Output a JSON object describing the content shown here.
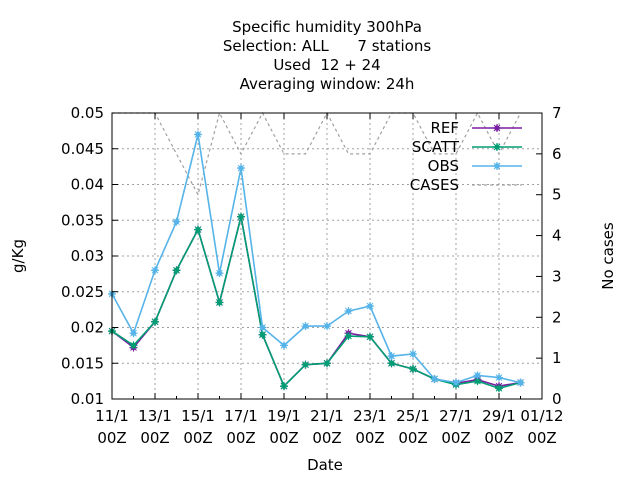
{
  "chart_data": {
    "type": "line",
    "title_lines": [
      "Specific humidity 300hPa",
      "Selection: ALL      7 stations",
      "Used  12 + 24",
      "Averaging window: 24h"
    ],
    "xlabel": "Date",
    "ylabel": "g/Kg",
    "y2label": "No cases",
    "ylim": [
      0.01,
      0.05
    ],
    "y2lim": [
      0,
      7
    ],
    "yticks": [
      "0.01",
      "0.015",
      "0.02",
      "0.025",
      "0.03",
      "0.035",
      "0.04",
      "0.045",
      "0.05"
    ],
    "y2ticks": [
      "0",
      "1",
      "2",
      "3",
      "4",
      "5",
      "6",
      "7"
    ],
    "xticks": [
      {
        "label": "11/1",
        "sub": "00Z"
      },
      {
        "label": "13/1",
        "sub": "00Z"
      },
      {
        "label": "15/1",
        "sub": "00Z"
      },
      {
        "label": "17/1",
        "sub": "00Z"
      },
      {
        "label": "19/1",
        "sub": "00Z"
      },
      {
        "label": "21/1",
        "sub": "00Z"
      },
      {
        "label": "23/1",
        "sub": "00Z"
      },
      {
        "label": "25/1",
        "sub": "00Z"
      },
      {
        "label": "27/1",
        "sub": "00Z"
      },
      {
        "label": "29/1",
        "sub": "00Z"
      },
      {
        "label": "01/12",
        "sub": "00Z"
      }
    ],
    "x_days": [
      "11/1",
      "12/1",
      "13/1",
      "14/1",
      "15/1",
      "16/1",
      "17/1",
      "18/1",
      "19/1",
      "20/1",
      "21/1",
      "22/1",
      "23/1",
      "24/1",
      "25/1",
      "26/1",
      "27/1",
      "28/1",
      "29/1",
      "30/1",
      "01/12"
    ],
    "series": [
      {
        "name": "REF",
        "color": "#7b1fa2",
        "axis": "y",
        "marker": true,
        "x": [
          0,
          1,
          2,
          3,
          4,
          5,
          6,
          7,
          8,
          9,
          10,
          11,
          12,
          13,
          14,
          15,
          16,
          17,
          18,
          19,
          20
        ],
        "values": [
          0.0195,
          0.0172,
          0.0208,
          0.028,
          0.0337,
          0.0235,
          0.0355,
          0.019,
          0.0118,
          0.0148,
          0.015,
          0.0192,
          0.0187,
          0.015,
          0.0142,
          0.0128,
          0.0122,
          0.0127,
          0.0118,
          0.0123,
          null
        ]
      },
      {
        "name": "SCATT",
        "color": "#009e73",
        "axis": "y",
        "marker": true,
        "x": [
          0,
          1,
          2,
          3,
          4,
          5,
          6,
          7,
          8,
          9,
          10,
          11,
          12,
          13,
          14,
          15,
          16,
          17,
          18,
          19,
          20
        ],
        "values": [
          0.0195,
          0.0175,
          0.0208,
          0.028,
          0.0337,
          0.0235,
          0.0355,
          0.019,
          0.0118,
          0.0148,
          0.015,
          0.0188,
          0.0187,
          0.015,
          0.0142,
          0.0128,
          0.012,
          0.0125,
          0.0115,
          0.0123,
          null
        ]
      },
      {
        "name": "OBS",
        "color": "#56b4e9",
        "axis": "y",
        "marker": true,
        "x": [
          0,
          1,
          2,
          3,
          4,
          5,
          6,
          7,
          8,
          9,
          10,
          11,
          12,
          13,
          14,
          15,
          16,
          17,
          18,
          19,
          20
        ],
        "values": [
          0.0247,
          0.0192,
          0.028,
          0.0348,
          0.047,
          0.0276,
          0.0423,
          0.02,
          0.0175,
          0.0202,
          0.0202,
          0.0223,
          0.023,
          0.016,
          0.0163,
          0.0128,
          0.0123,
          0.0133,
          0.013,
          0.0123,
          null
        ]
      },
      {
        "name": "CASES",
        "color": "#a0a0a0",
        "axis": "y2",
        "marker": false,
        "dashed": true,
        "x": [
          0,
          1,
          2,
          3,
          4,
          5,
          6,
          7,
          8,
          9,
          10,
          11,
          12,
          13,
          14,
          15,
          16,
          17,
          18,
          19,
          20
        ],
        "values": [
          7,
          7,
          7,
          6,
          5,
          7,
          6,
          7,
          6,
          6,
          7,
          6,
          6,
          7,
          7,
          6,
          6,
          7,
          6,
          7,
          null
        ]
      }
    ],
    "legend_position": "top-right",
    "grid": true
  }
}
